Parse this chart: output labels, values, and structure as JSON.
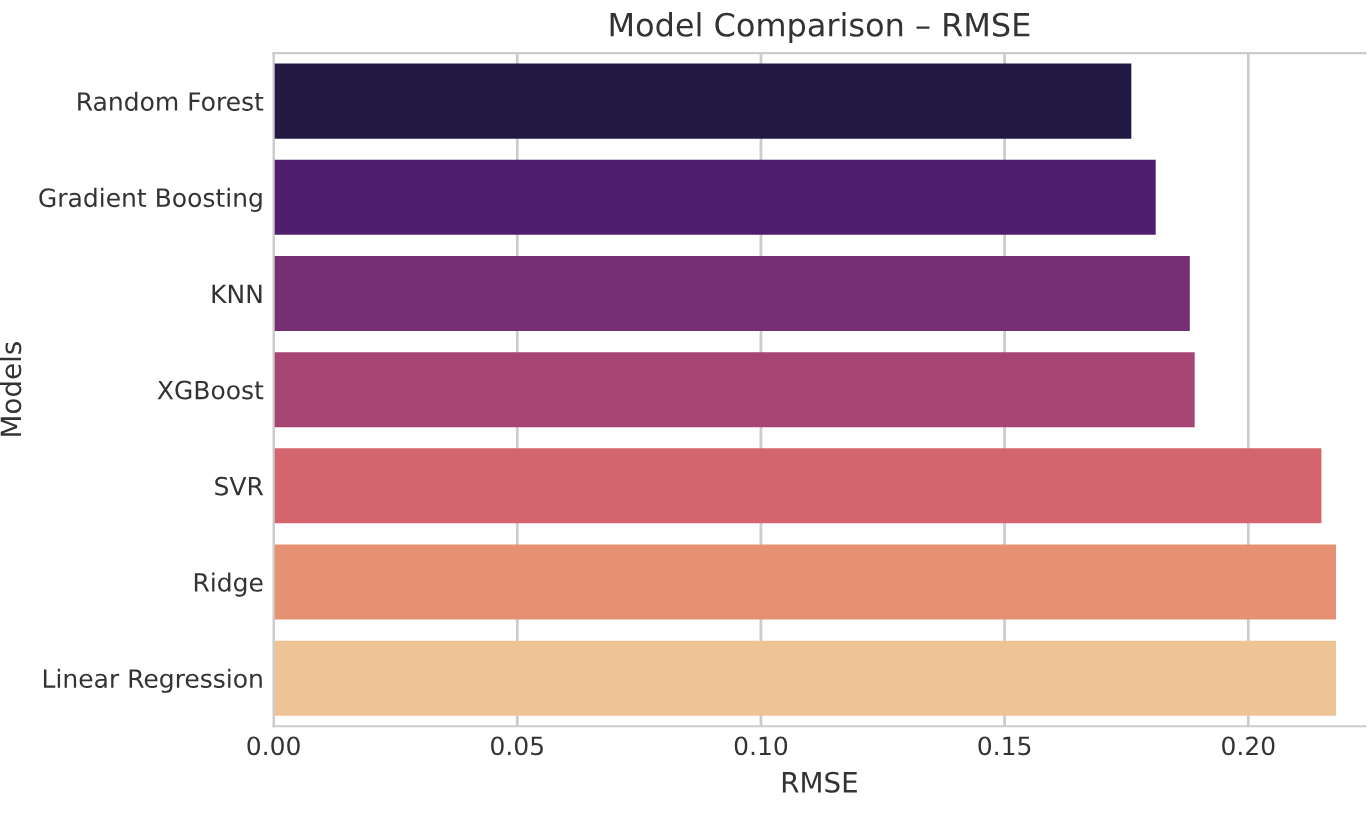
{
  "chart_data": {
    "type": "bar",
    "orientation": "horizontal",
    "title": "Model Comparison – RMSE",
    "xlabel": "RMSE",
    "ylabel": "Models",
    "categories": [
      "Random Forest",
      "Gradient Boosting",
      "KNN",
      "XGBoost",
      "SVR",
      "Ridge",
      "Linear Regression"
    ],
    "values": [
      0.176,
      0.181,
      0.188,
      0.189,
      0.215,
      0.218,
      0.218
    ],
    "colors": [
      "#221942",
      "#4f1f6e",
      "#772f74",
      "#a64574",
      "#d4646e",
      "#e69173",
      "#eec396"
    ],
    "xlim": [
      0,
      0.224
    ],
    "xticks": [
      {
        "value": 0,
        "label": "0.00"
      },
      {
        "value": 0.05,
        "label": "0.05"
      },
      {
        "value": 0.1,
        "label": "0.10"
      },
      {
        "value": 0.15,
        "label": "0.15"
      },
      {
        "value": 0.2,
        "label": "0.20"
      }
    ],
    "grid": "x",
    "legend": false
  }
}
